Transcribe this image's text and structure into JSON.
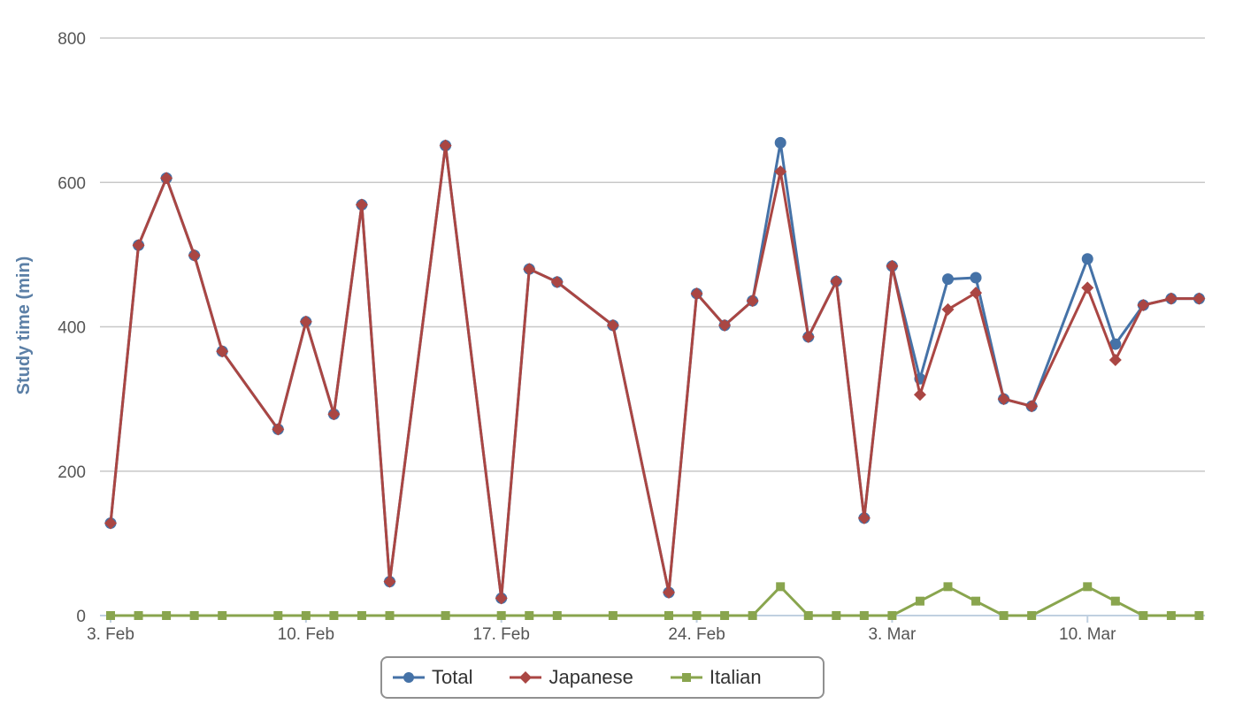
{
  "chart_data": {
    "type": "line",
    "title": "",
    "xlabel": "",
    "ylabel": "Study time (min)",
    "ylim": [
      0,
      800
    ],
    "yticks": [
      0,
      200,
      400,
      600,
      800
    ],
    "xticks": [
      "3. Feb",
      "10. Feb",
      "17. Feb",
      "24. Feb",
      "3. Mar",
      "10. Mar"
    ],
    "xtick_dates": [
      "Feb 3",
      "Feb 10",
      "Feb 17",
      "Feb 24",
      "Mar 3",
      "Mar 10"
    ],
    "grid": true,
    "legend_position": "bottom-center",
    "x": [
      "Feb 3",
      "Feb 4",
      "Feb 5",
      "Feb 6",
      "Feb 7",
      "Feb 9",
      "Feb 10",
      "Feb 11",
      "Feb 12",
      "Feb 13",
      "Feb 15",
      "Feb 17",
      "Feb 18",
      "Feb 19",
      "Feb 21",
      "Feb 23",
      "Feb 24",
      "Feb 25",
      "Feb 26",
      "Feb 27",
      "Feb 28",
      "Mar 1",
      "Mar 2",
      "Mar 3",
      "Mar 4",
      "Mar 5",
      "Mar 6",
      "Mar 7",
      "Mar 8",
      "Mar 10",
      "Mar 11",
      "Mar 12",
      "Mar 13",
      "Mar 14"
    ],
    "series": [
      {
        "name": "Total",
        "color": "#4572a7",
        "marker": "circle",
        "values": [
          128,
          513,
          606,
          499,
          366,
          258,
          407,
          279,
          569,
          47,
          651,
          24,
          480,
          462,
          402,
          32,
          446,
          402,
          436,
          655,
          386,
          463,
          135,
          484,
          328,
          466,
          468,
          300,
          290,
          494,
          376,
          430,
          439,
          439
        ]
      },
      {
        "name": "Japanese",
        "color": "#aa4643",
        "marker": "diamond",
        "values": [
          128,
          513,
          606,
          499,
          366,
          258,
          407,
          279,
          569,
          47,
          651,
          24,
          480,
          462,
          402,
          32,
          446,
          402,
          436,
          615,
          386,
          463,
          135,
          484,
          306,
          424,
          447,
          300,
          290,
          454,
          354,
          430,
          439,
          439
        ]
      },
      {
        "name": "Italian",
        "color": "#89a54e",
        "marker": "square",
        "values": [
          0,
          0,
          0,
          0,
          0,
          0,
          0,
          0,
          0,
          0,
          0,
          0,
          0,
          0,
          0,
          0,
          0,
          0,
          0,
          40,
          0,
          0,
          0,
          0,
          20,
          40,
          20,
          0,
          0,
          40,
          20,
          0,
          0,
          0
        ]
      }
    ]
  }
}
